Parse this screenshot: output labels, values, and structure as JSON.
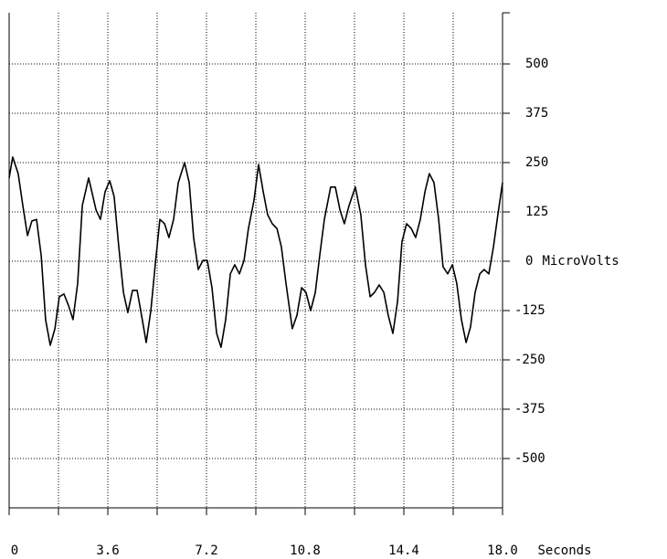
{
  "chart_data": {
    "type": "line",
    "x_label": "Seconds",
    "y_label": "MicroVolts",
    "color": "#000000",
    "xlim": [
      0,
      18
    ],
    "ylim": [
      -625,
      625
    ],
    "xticks": [
      0,
      3.6,
      7.2,
      10.8,
      14.4,
      {
        "value": 18,
        "label": "18.0"
      }
    ],
    "x_minor_ticks": [
      1.8,
      5.4,
      9,
      12.6,
      16.2
    ],
    "yticks": [
      -500,
      -375,
      -250,
      -125,
      0,
      125,
      250,
      375,
      500
    ],
    "grid": true,
    "x": [
      0,
      0.13,
      0.33,
      0.5,
      0.67,
      0.83,
      1.0,
      1.17,
      1.33,
      1.5,
      1.67,
      1.83,
      2.0,
      2.17,
      2.33,
      2.5,
      2.67,
      2.9,
      3.17,
      3.33,
      3.5,
      3.67,
      3.83,
      4.0,
      4.17,
      4.33,
      4.5,
      4.67,
      4.83,
      5.0,
      5.17,
      5.33,
      5.5,
      5.67,
      5.83,
      6.0,
      6.17,
      6.4,
      6.57,
      6.73,
      6.9,
      7.07,
      7.23,
      7.4,
      7.57,
      7.73,
      7.9,
      8.07,
      8.23,
      8.4,
      8.57,
      8.73,
      8.93,
      9.1,
      9.27,
      9.43,
      9.6,
      9.77,
      9.93,
      10.1,
      10.33,
      10.5,
      10.67,
      10.83,
      11.0,
      11.17,
      11.33,
      11.5,
      11.73,
      11.9,
      12.07,
      12.23,
      12.4,
      12.63,
      12.83,
      13.0,
      13.17,
      13.33,
      13.5,
      13.67,
      13.83,
      14.0,
      14.17,
      14.33,
      14.5,
      14.67,
      14.83,
      15.0,
      15.17,
      15.33,
      15.5,
      15.67,
      15.83,
      16.0,
      16.17,
      16.33,
      16.5,
      16.67,
      16.83,
      17.0,
      17.17,
      17.33,
      17.5,
      17.67,
      17.83,
      18.0
    ],
    "values": [
      211,
      264,
      222,
      141,
      65,
      102,
      106,
      14,
      -148,
      -213,
      -171,
      -90,
      -83,
      -113,
      -148,
      -56,
      141,
      211,
      130,
      106,
      176,
      204,
      164,
      37,
      -79,
      -130,
      -74,
      -74,
      -137,
      -206,
      -125,
      -9,
      106,
      95,
      60,
      106,
      199,
      250,
      199,
      60,
      -21,
      2,
      2,
      -67,
      -183,
      -218,
      -148,
      -32,
      -9,
      -32,
      2,
      83,
      153,
      245,
      176,
      118,
      95,
      83,
      37,
      -56,
      -171,
      -137,
      -67,
      -79,
      -125,
      -79,
      14,
      106,
      188,
      188,
      130,
      95,
      141,
      188,
      118,
      -9,
      -90,
      -79,
      -60,
      -79,
      -137,
      -183,
      -102,
      49,
      95,
      83,
      60,
      106,
      176,
      222,
      199,
      106,
      -14,
      -32,
      -9,
      -56,
      -148,
      -206,
      -167,
      -79,
      -32,
      -21,
      -32,
      37,
      118,
      199
    ]
  }
}
